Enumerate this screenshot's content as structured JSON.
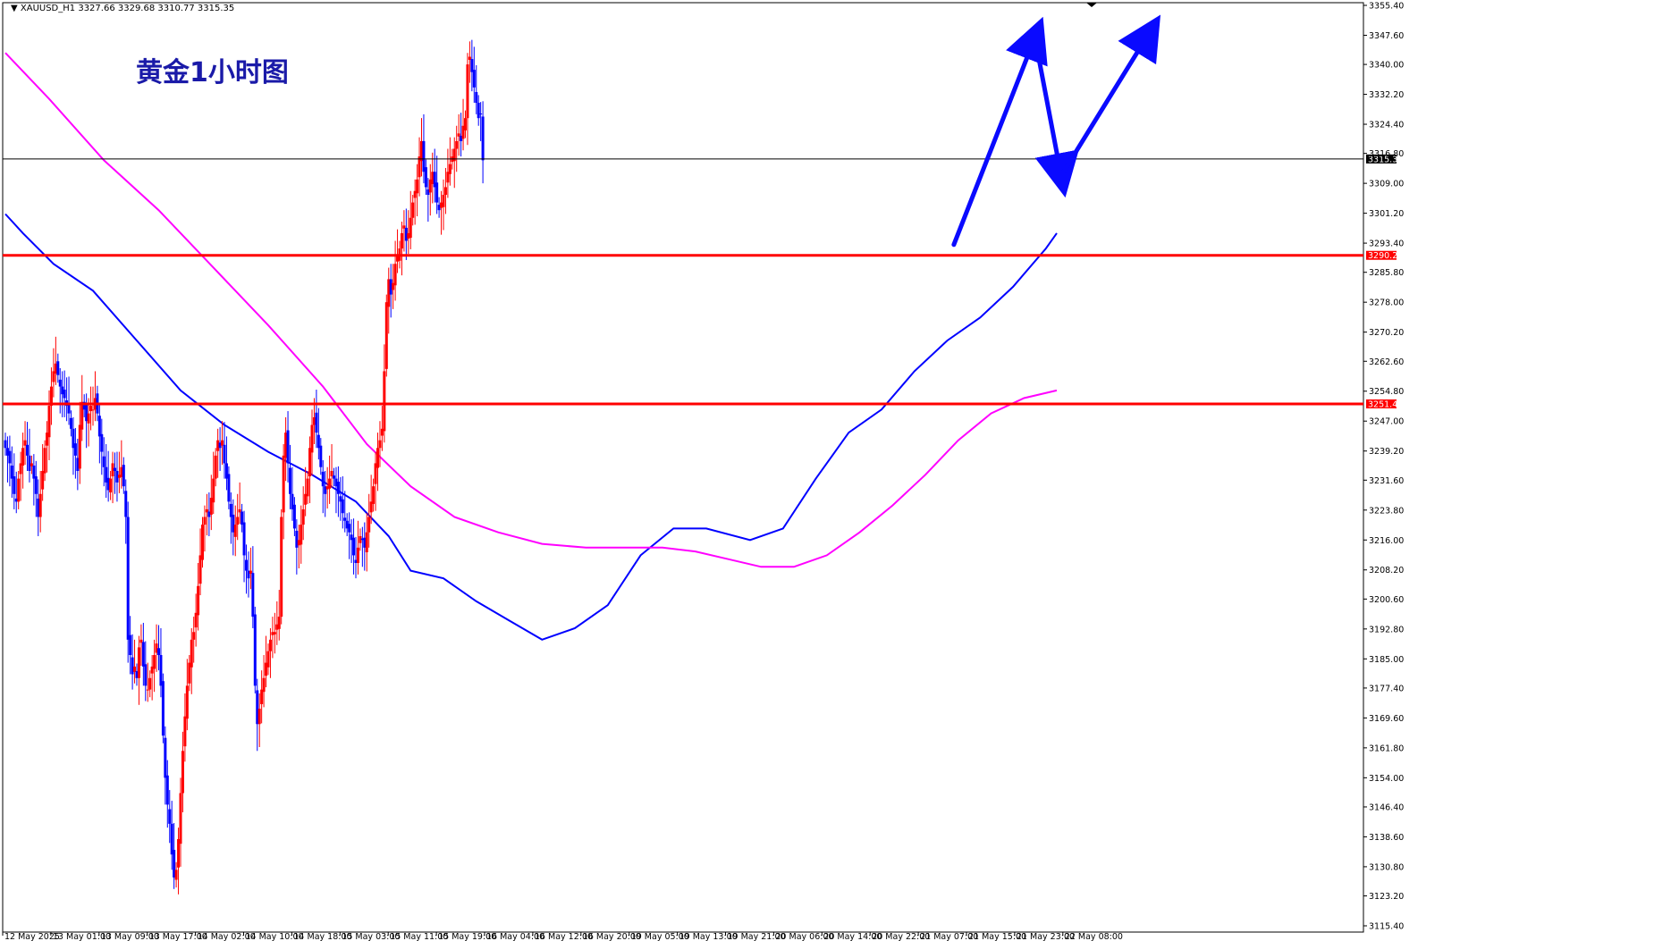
{
  "header": {
    "symbol": "XAUUSD_H1",
    "ohlc": "3327.66 3329.68 3310.77 3315.35"
  },
  "title": "黄金1小时图",
  "colors": {
    "up": "#ff0000",
    "down": "#0000ff",
    "ma_short": "#0000ff",
    "ma_long": "#ff00ff",
    "level_line": "#ff0000",
    "price_line": "#000000",
    "arrow": "#0a0aff"
  },
  "chart_data": {
    "type": "candlestick",
    "symbol": "XAUUSD",
    "timeframe": "H1",
    "y_range": [
      3115.4,
      3355.4
    ],
    "y_ticks": [
      3355.4,
      3347.6,
      3340.0,
      3332.2,
      3324.4,
      3316.8,
      3309.0,
      3301.2,
      3293.4,
      3285.8,
      3278.0,
      3270.2,
      3262.6,
      3254.8,
      3247.0,
      3239.2,
      3231.6,
      3223.8,
      3216.0,
      3208.2,
      3200.6,
      3192.8,
      3185.0,
      3177.4,
      3169.6,
      3161.8,
      3154.0,
      3146.4,
      3138.6,
      3130.8,
      3123.2,
      3115.4
    ],
    "x_labels": [
      "12 May 2025",
      "13 May 01:00",
      "13 May 09:00",
      "13 May 17:00",
      "14 May 02:00",
      "14 May 10:00",
      "14 May 18:00",
      "15 May 03:00",
      "15 May 11:00",
      "15 May 19:00",
      "16 May 04:00",
      "16 May 12:00",
      "16 May 20:00",
      "19 May 05:00",
      "19 May 13:00",
      "19 May 21:00",
      "20 May 06:00",
      "20 May 14:00",
      "20 May 22:00",
      "21 May 07:00",
      "21 May 15:00",
      "21 May 23:00",
      "22 May 08:00"
    ],
    "levels": [
      {
        "price": 3290.22,
        "label": "3290.22"
      },
      {
        "price": 3251.48,
        "label": "3251.48"
      }
    ],
    "current_price": {
      "price": 3315.35,
      "label": "3315.35"
    },
    "closes": [
      3240,
      3238,
      3236,
      3232,
      3228,
      3226,
      3232,
      3236,
      3240,
      3242,
      3238,
      3234,
      3236,
      3232,
      3228,
      3222,
      3228,
      3234,
      3240,
      3244,
      3251,
      3256,
      3260,
      3262,
      3259,
      3256,
      3254,
      3253,
      3251,
      3249,
      3245,
      3240,
      3238,
      3234,
      3246,
      3252,
      3250,
      3247,
      3249,
      3251,
      3250,
      3253,
      3249,
      3243,
      3239,
      3235,
      3231,
      3229,
      3232,
      3236,
      3234,
      3231,
      3233,
      3235,
      3230,
      3222,
      3190,
      3186,
      3181,
      3183,
      3180,
      3188,
      3190,
      3183,
      3178,
      3177,
      3180,
      3183,
      3186,
      3189,
      3186,
      3178,
      3165,
      3154,
      3147,
      3142,
      3134,
      3128,
      3130,
      3138,
      3150,
      3161,
      3170,
      3178,
      3184,
      3190,
      3192,
      3197,
      3204,
      3212,
      3220,
      3222,
      3224,
      3222,
      3227,
      3232,
      3238,
      3242,
      3240,
      3242,
      3236,
      3232,
      3226,
      3222,
      3218,
      3220,
      3222,
      3224,
      3220,
      3212,
      3208,
      3206,
      3208,
      3196,
      3178,
      3168,
      3172,
      3177,
      3180,
      3184,
      3187,
      3190,
      3192,
      3192,
      3194,
      3196,
      3222,
      3238,
      3244,
      3236,
      3228,
      3224,
      3219,
      3214,
      3216,
      3220,
      3224,
      3228,
      3232,
      3240,
      3246,
      3248,
      3244,
      3240,
      3235,
      3230,
      3228,
      3230,
      3232,
      3234,
      3232,
      3230,
      3228,
      3226,
      3223,
      3221,
      3219,
      3218,
      3216,
      3212,
      3210,
      3214,
      3217,
      3216,
      3214,
      3218,
      3222,
      3226,
      3230,
      3236,
      3240,
      3242,
      3245,
      3260,
      3278,
      3284,
      3280,
      3283,
      3288,
      3290,
      3292,
      3296,
      3298,
      3294,
      3296,
      3300,
      3304,
      3307,
      3310,
      3316,
      3320,
      3312,
      3308,
      3306,
      3310,
      3312,
      3308,
      3304,
      3302,
      3304,
      3306,
      3308,
      3312,
      3314,
      3316,
      3318,
      3320,
      3322,
      3320,
      3324,
      3326,
      3340,
      3342,
      3338,
      3334,
      3330,
      3326,
      3327,
      3315
    ],
    "series": [
      {
        "name": "",
        "kind": "moving-average-short",
        "points": [
          [
            0,
            3301
          ],
          [
            8,
            3296
          ],
          [
            22,
            3288
          ],
          [
            40,
            3281
          ],
          [
            60,
            3268
          ],
          [
            80,
            3255
          ],
          [
            100,
            3246
          ],
          [
            120,
            3239
          ],
          [
            140,
            3233
          ],
          [
            160,
            3226
          ],
          [
            175,
            3217
          ],
          [
            185,
            3208
          ],
          [
            200,
            3206
          ],
          [
            215,
            3200
          ],
          [
            230,
            3195
          ],
          [
            245,
            3190
          ],
          [
            260,
            3193
          ],
          [
            275,
            3199
          ],
          [
            290,
            3212
          ],
          [
            305,
            3219
          ],
          [
            320,
            3219
          ],
          [
            340,
            3216
          ],
          [
            355,
            3219
          ],
          [
            370,
            3232
          ],
          [
            385,
            3244
          ],
          [
            400,
            3250
          ],
          [
            415,
            3260
          ],
          [
            430,
            3268
          ],
          [
            445,
            3274
          ],
          [
            460,
            3282
          ],
          [
            475,
            3292
          ],
          [
            480,
            3296
          ]
        ]
      },
      {
        "name": "",
        "kind": "moving-average-long",
        "points": [
          [
            0,
            3343
          ],
          [
            20,
            3331
          ],
          [
            45,
            3315
          ],
          [
            70,
            3302
          ],
          [
            95,
            3287
          ],
          [
            120,
            3272
          ],
          [
            145,
            3256
          ],
          [
            165,
            3241
          ],
          [
            185,
            3230
          ],
          [
            205,
            3222
          ],
          [
            225,
            3218
          ],
          [
            245,
            3215
          ],
          [
            265,
            3214
          ],
          [
            285,
            3214
          ],
          [
            300,
            3214
          ],
          [
            315,
            3213
          ],
          [
            330,
            3211
          ],
          [
            345,
            3209
          ],
          [
            360,
            3209
          ],
          [
            375,
            3212
          ],
          [
            390,
            3218
          ],
          [
            405,
            3225
          ],
          [
            420,
            3233
          ],
          [
            435,
            3242
          ],
          [
            450,
            3249
          ],
          [
            465,
            3253
          ],
          [
            480,
            3255
          ]
        ]
      }
    ],
    "annotations": [
      {
        "type": "arrow-path",
        "points": [
          [
            433,
            3293
          ],
          [
            470,
            3347
          ],
          [
            482,
            3311
          ],
          [
            522,
            3348
          ]
        ]
      }
    ]
  }
}
